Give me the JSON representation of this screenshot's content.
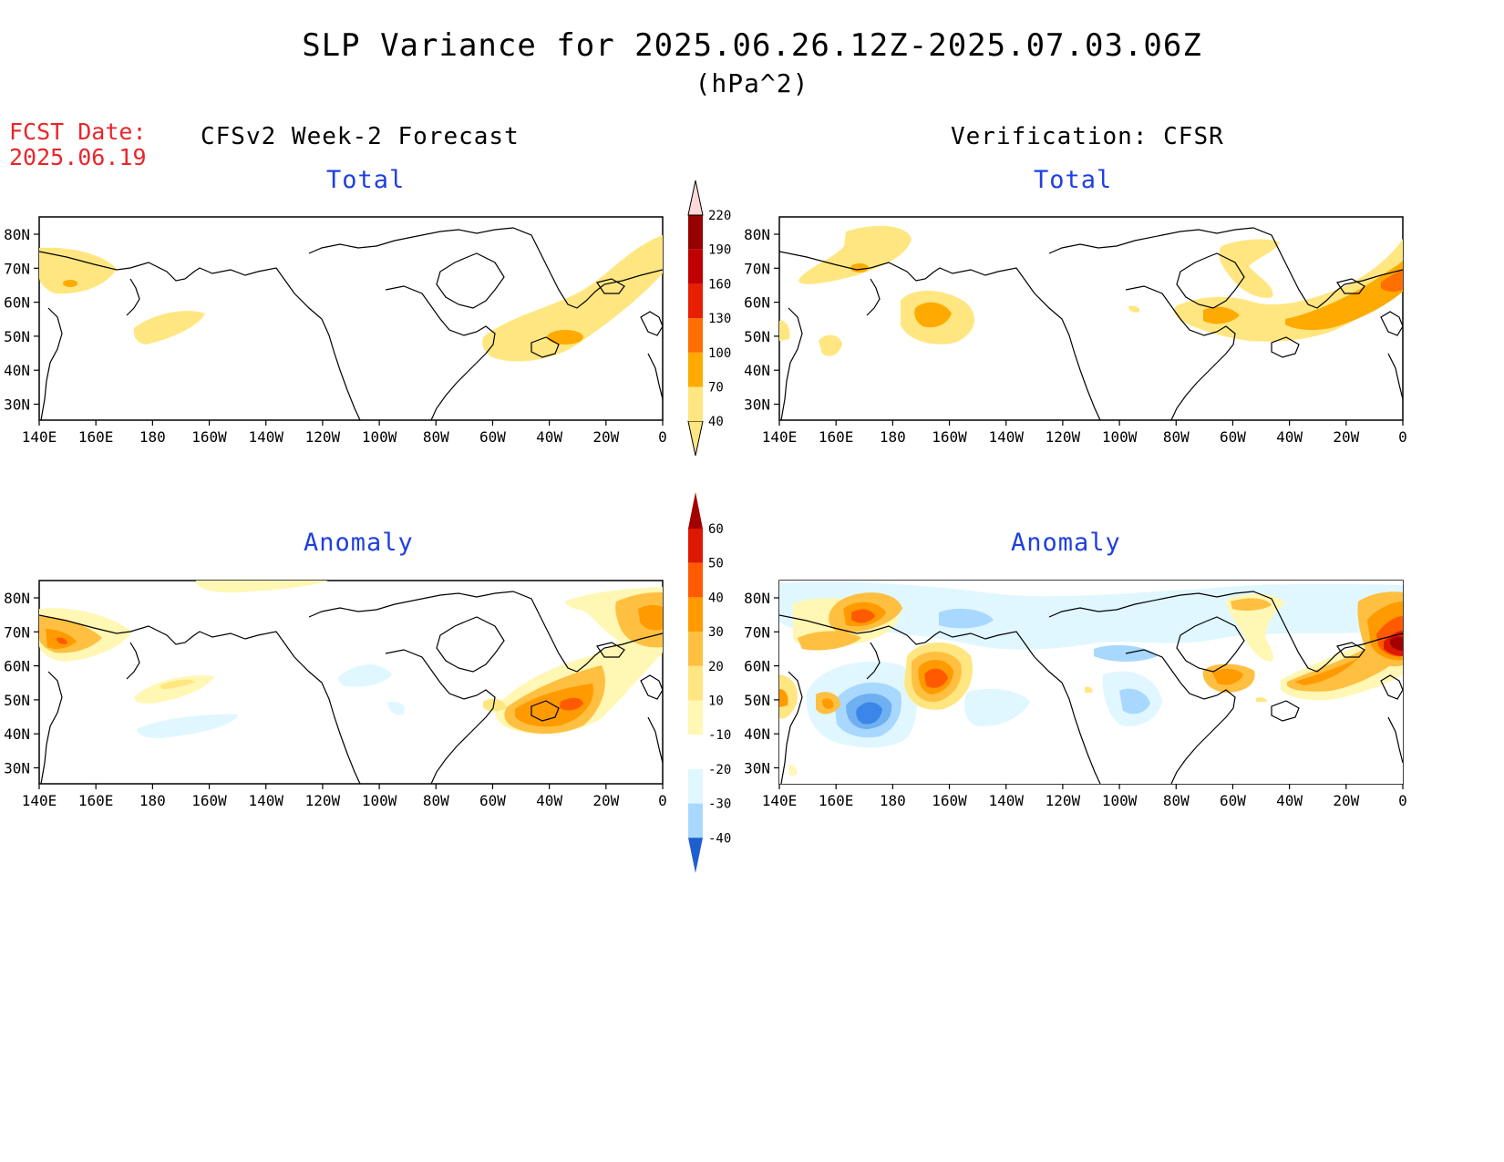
{
  "header": {
    "title": "SLP Variance for 2025.06.26.12Z-2025.07.03.06Z",
    "units": "(hPa^2)",
    "fcst_label": "FCST Date:",
    "fcst_date": "2025.06.19"
  },
  "columns": {
    "left": "CFSv2 Week-2 Forecast",
    "right": "Verification: CFSR"
  },
  "panels": {
    "top_left": "Total",
    "top_right": "Total",
    "bottom_left": "Anomaly",
    "bottom_right": "Anomaly"
  },
  "axes": {
    "lon_labels": [
      "140E",
      "160E",
      "180",
      "160W",
      "140W",
      "120W",
      "100W",
      "80W",
      "60W",
      "40W",
      "20W",
      "0"
    ],
    "lat_labels": [
      "80N",
      "70N",
      "60N",
      "50N",
      "40N",
      "30N"
    ]
  },
  "colorbar_total": {
    "levels": [
      "40",
      "70",
      "100",
      "130",
      "160",
      "190",
      "220"
    ],
    "colors": [
      "#ffe680",
      "#ffaa00",
      "#ff6e00",
      "#e81e00",
      "#c00000",
      "#960000",
      "#f0a0a0",
      "#ffd8d8"
    ]
  },
  "colorbar_anomaly": {
    "levels": [
      "60",
      "50",
      "40",
      "30",
      "20",
      "10",
      "-10",
      "-20",
      "-30",
      "-40"
    ],
    "colors": [
      "#a50000",
      "#dd1800",
      "#ff5a00",
      "#ff9a00",
      "#ffbf40",
      "#ffe680",
      "#fff7b3",
      "#ffffff",
      "#e0f7ff",
      "#a8d8ff",
      "#6fb0f0",
      "#3b86e8",
      "#1e5fd0"
    ]
  }
}
